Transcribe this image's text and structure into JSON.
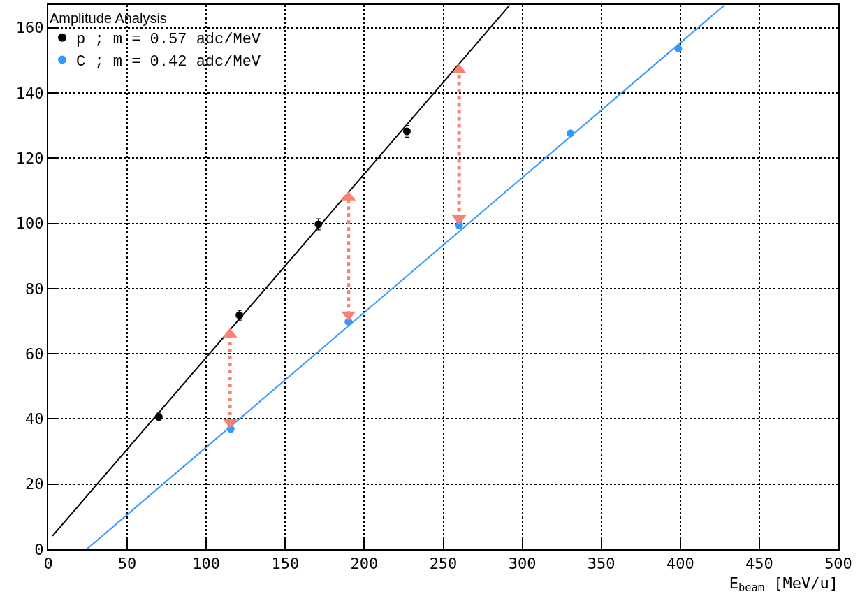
{
  "chart_data": {
    "type": "scatter",
    "legend_title": "Amplitude Analysis",
    "xlabel": "E$_{beam}$ [MeV/u]",
    "xlim": [
      0,
      500
    ],
    "xticks": [
      0,
      50,
      100,
      150,
      200,
      250,
      300,
      350,
      400,
      450,
      500
    ],
    "ylim": [
      0,
      167
    ],
    "yticks": [
      0,
      20,
      40,
      60,
      80,
      100,
      120,
      140,
      160
    ],
    "grid": true,
    "legend": "top left",
    "marker": "circle",
    "series": [
      {
        "name": "p ; m = 0.57 adc/MeV",
        "color": "#000000",
        "x": [
          70,
          121,
          171,
          227
        ],
        "values": [
          40.6,
          71.8,
          99.7,
          128.2
        ],
        "errors": [
          1.2,
          1.5,
          1.7,
          1.8
        ]
      },
      {
        "name": "C ; m = 0.42 adc/MeV",
        "color": "#3399ff",
        "x": [
          115.5,
          190,
          260,
          330.5,
          398.7
        ],
        "values": [
          36.9,
          69.8,
          99.4,
          127.6,
          153.6
        ]
      },
      {
        "type": "line",
        "color": "#000000",
        "marker": "none",
        "x": [
          2.7,
          292
        ],
        "values": [
          4.1,
          166.9
        ]
      },
      {
        "type": "line",
        "color": "#3399ff",
        "marker": "none",
        "x": [
          24.3,
          427.9
        ],
        "values": [
          0,
          166.9
        ]
      },
      {
        "type": "line",
        "color": "#fa8072",
        "marker": "triangle",
        "line_style": "dotted",
        "x": [
          115,
          115
        ],
        "values": [
          39,
          66
        ]
      },
      {
        "type": "line",
        "color": "#fa8072",
        "marker": "triangle",
        "line_style": "dotted",
        "x": [
          190,
          190
        ],
        "values": [
          72,
          108
        ]
      },
      {
        "type": "line",
        "color": "#fa8072",
        "marker": "triangle",
        "line_style": "dotted",
        "x": [
          260,
          260
        ],
        "values": [
          101.5,
          147
        ]
      }
    ]
  }
}
